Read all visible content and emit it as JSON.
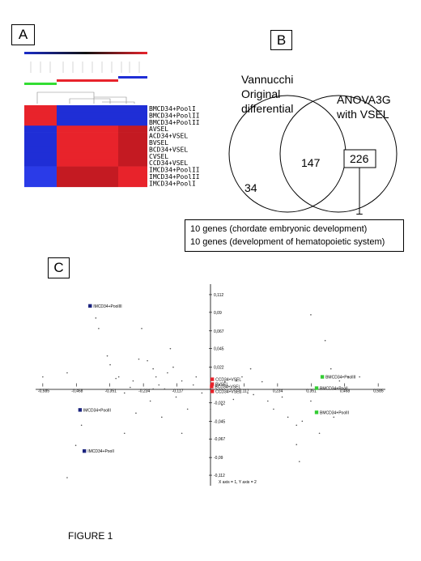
{
  "panels": {
    "a": "A",
    "b": "B",
    "c": "C"
  },
  "heatmap": {
    "rows": [
      "BMCD34+PoolI",
      "BMCD34+PoolII",
      "BMCD34+PoolIII",
      "AVSEL",
      "ACD34+VSEL",
      "BVSEL",
      "BCD34+VSEL",
      "CVSEL",
      "CCD34+VSEL",
      "IMCD34+PoolIII",
      "IMCD34+PoolII",
      "IMCD34+PoolI"
    ],
    "colors": {
      "high": "#e8232b",
      "dark_high": "#c41a22",
      "low": "#1f2ed6",
      "mid_blue": "#2a3be8"
    }
  },
  "venn": {
    "left_label": [
      "Vannucchi",
      "Original",
      "differential"
    ],
    "right_label": [
      "ANOVA3G",
      "with VSEL"
    ],
    "left_only": "34",
    "overlap": "147",
    "right_only": "226"
  },
  "gene_box": {
    "line1": "10 genes (chordate embryonic development)",
    "line2": "10 genes (development of hematopoietic system)"
  },
  "chart_data": {
    "type": "scatter",
    "title": "",
    "xlabel": "",
    "ylabel": "",
    "axis_note": "X axis = 1, Y axis = 2",
    "x_ticks": [
      "-0,585",
      "-0,468",
      "-0,351",
      "-0,234",
      "-0,117",
      "0,117",
      "0,234",
      "0,351",
      "0,468",
      "0,585"
    ],
    "x_tick_values": [
      -0.585,
      -0.468,
      -0.351,
      -0.234,
      -0.117,
      0.117,
      0.234,
      0.351,
      0.468,
      0.585
    ],
    "y_ticks": [
      "0,112",
      "0,09",
      "0,067",
      "0,045",
      "0,022",
      "-0,022",
      "-0,045",
      "-0,067",
      "-0,09",
      "-0,112"
    ],
    "y_tick_values": [
      0.112,
      0.09,
      0.067,
      0.045,
      0.022,
      -0.022,
      -0.045,
      -0.067,
      -0.09,
      -0.112
    ],
    "xlim": [
      -0.61,
      0.61
    ],
    "ylim": [
      -0.125,
      0.125
    ],
    "labeled_points": [
      {
        "label": "IMCD34+PoolIII",
        "x": -0.42,
        "y": 0.098,
        "color": "#1a237e"
      },
      {
        "label": "IMCD34+PoolII",
        "x": -0.455,
        "y": -0.031,
        "color": "#1a237e"
      },
      {
        "label": "IMCD34+PoolI",
        "x": -0.44,
        "y": -0.082,
        "color": "#1a237e"
      },
      {
        "label": "BMCD34+PoolIII",
        "x": 0.39,
        "y": 0.01,
        "color": "#33cc33"
      },
      {
        "label": "BMCD34+PoolI",
        "x": 0.37,
        "y": -0.004,
        "color": "#33cc33"
      },
      {
        "label": "BMCD34+PoolII",
        "x": 0.37,
        "y": -0.034,
        "color": "#33cc33"
      },
      {
        "label": "CCD34+VSEL",
        "x": 0.006,
        "y": 0.007,
        "color": "#e8232b"
      },
      {
        "label": "BVSEL",
        "x": 0.006,
        "y": 0.001,
        "color": "#e8232b"
      },
      {
        "label": "BCD34+VSEL",
        "x": 0.004,
        "y": -0.002,
        "color": "#e8232b"
      },
      {
        "label": "CCD34+VSEL",
        "x": 0.006,
        "y": -0.008,
        "color": "#e8232b"
      }
    ],
    "gene_points": [
      [
        -0.585,
        0.01
      ],
      [
        -0.5,
        0.015
      ],
      [
        -0.4,
        0.083
      ],
      [
        -0.39,
        0.07
      ],
      [
        -0.36,
        0.036
      ],
      [
        -0.33,
        0.008
      ],
      [
        -0.32,
        0.01
      ],
      [
        -0.3,
        -0.01
      ],
      [
        -0.28,
        -0.003
      ],
      [
        -0.27,
        0.005
      ],
      [
        -0.35,
        0.025
      ],
      [
        -0.25,
        0.032
      ],
      [
        -0.24,
        0.07
      ],
      [
        -0.22,
        0.03
      ],
      [
        -0.2,
        0.02
      ],
      [
        -0.19,
        0.01
      ],
      [
        -0.18,
        0.0
      ],
      [
        -0.16,
        -0.005
      ],
      [
        -0.15,
        0.015
      ],
      [
        -0.14,
        0.045
      ],
      [
        -0.13,
        0.022
      ],
      [
        -0.12,
        -0.015
      ],
      [
        -0.1,
        0.005
      ],
      [
        -0.08,
        -0.03
      ],
      [
        -0.05,
        0.01
      ],
      [
        -0.03,
        -0.01
      ],
      [
        -0.21,
        -0.02
      ],
      [
        -0.26,
        -0.035
      ],
      [
        -0.3,
        -0.06
      ],
      [
        -0.2,
        -0.005
      ],
      [
        -0.45,
        -0.05
      ],
      [
        -0.47,
        -0.075
      ],
      [
        -0.5,
        -0.115
      ],
      [
        -0.17,
        -0.04
      ],
      [
        -0.1,
        -0.06
      ],
      [
        0.03,
        0.0
      ],
      [
        0.05,
        0.004
      ],
      [
        0.07,
        -0.005
      ],
      [
        0.09,
        0.005
      ],
      [
        0.11,
        0.01
      ],
      [
        0.13,
        -0.01
      ],
      [
        0.15,
        -0.012
      ],
      [
        0.18,
        0.004
      ],
      [
        0.2,
        -0.02
      ],
      [
        0.22,
        -0.03
      ],
      [
        0.25,
        -0.015
      ],
      [
        0.27,
        -0.04
      ],
      [
        0.3,
        -0.05
      ],
      [
        0.32,
        -0.045
      ],
      [
        0.3,
        -0.074
      ],
      [
        0.31,
        -0.095
      ],
      [
        0.35,
        0.087
      ],
      [
        0.35,
        -0.02
      ],
      [
        0.38,
        -0.06
      ],
      [
        0.42,
        0.02
      ],
      [
        0.45,
        0.005
      ],
      [
        0.48,
        0.01
      ],
      [
        0.52,
        0.01
      ],
      [
        0.4,
        0.055
      ],
      [
        0.43,
        -0.04
      ],
      [
        0.14,
        0.02
      ],
      [
        0.08,
        -0.018
      ],
      [
        0.04,
        -0.025
      ],
      [
        -0.06,
        0.0
      ],
      [
        0.0,
        -0.03
      ]
    ]
  },
  "caption": "FIGURE 1"
}
